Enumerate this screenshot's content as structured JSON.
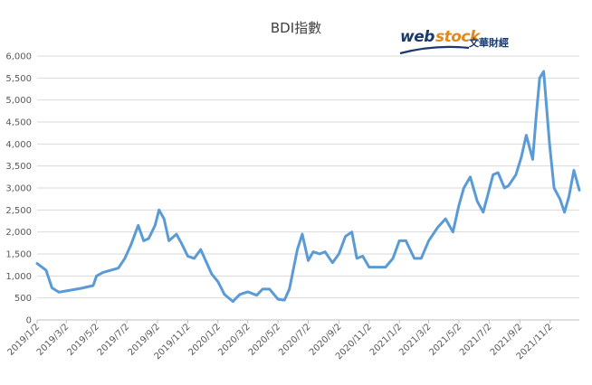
{
  "logo": {
    "brand_part1": "web",
    "brand_part2": "stock",
    "chinese": "文華財經"
  },
  "chart_data": {
    "type": "line",
    "title": "BDI指數",
    "xlabel": "",
    "ylabel": "",
    "ylim": [
      0,
      6000
    ],
    "y_ticks": [
      "0",
      "500",
      "1,000",
      "1,500",
      "2,000",
      "2,500",
      "3,000",
      "3,500",
      "4,000",
      "4,500",
      "5,000",
      "5,500",
      "6,000"
    ],
    "x_ticks": [
      "2019/1/2",
      "2019/3/2",
      "2019/5/2",
      "2019/7/2",
      "2019/9/2",
      "2019/11/2",
      "2020/1/2",
      "2020/3/2",
      "2020/5/2",
      "2020/7/2",
      "2020/9/2",
      "2020/11/2",
      "2021/1/2",
      "2021/3/2",
      "2021/5/2",
      "2021/7/2",
      "2021/9/2",
      "2021/11/2"
    ],
    "grid": true,
    "legend": "none",
    "line_color": "#5b9bd5",
    "series": [
      {
        "name": "",
        "x": [
          "2019/1/2",
          "2019/1/20",
          "2019/2/1",
          "2019/2/15",
          "2019/3/2",
          "2019/4/1",
          "2019/4/25",
          "2019/5/2",
          "2019/5/15",
          "2019/6/15",
          "2019/6/28",
          "2019/7/10",
          "2019/7/25",
          "2019/8/5",
          "2019/8/15",
          "2019/8/28",
          "2019/9/5",
          "2019/9/15",
          "2019/9/25",
          "2019/10/10",
          "2019/10/20",
          "2019/11/2",
          "2019/11/15",
          "2019/11/28",
          "2019/12/10",
          "2019/12/20",
          "2020/1/2",
          "2020/1/15",
          "2020/2/1",
          "2020/2/15",
          "2020/3/2",
          "2020/3/20",
          "2020/4/1",
          "2020/4/15",
          "2020/5/2",
          "2020/5/15",
          "2020/5/25",
          "2020/6/10",
          "2020/6/20",
          "2020/7/2",
          "2020/7/12",
          "2020/7/25",
          "2020/8/5",
          "2020/8/20",
          "2020/9/2",
          "2020/9/15",
          "2020/9/28",
          "2020/10/8",
          "2020/10/20",
          "2020/11/2",
          "2020/11/20",
          "2020/12/5",
          "2020/12/20",
          "2021/1/2",
          "2021/1/15",
          "2021/2/1",
          "2021/2/15",
          "2021/3/2",
          "2021/3/20",
          "2021/4/5",
          "2021/4/20",
          "2021/5/2",
          "2021/5/12",
          "2021/5/25",
          "2021/6/8",
          "2021/6/20",
          "2021/7/2",
          "2021/7/10",
          "2021/7/20",
          "2021/8/2",
          "2021/8/10",
          "2021/8/25",
          "2021/9/5",
          "2021/9/15",
          "2021/9/28",
          "2021/10/5",
          "2021/10/12",
          "2021/10/20",
          "2021/11/1",
          "2021/11/10",
          "2021/11/22",
          "2021/12/1",
          "2021/12/10",
          "2021/12/20",
          "2021/12/31"
        ],
        "values": [
          1282,
          1130,
          730,
          630,
          660,
          720,
          780,
          1000,
          1080,
          1180,
          1400,
          1700,
          2150,
          1800,
          1850,
          2150,
          2500,
          2300,
          1800,
          1950,
          1750,
          1450,
          1400,
          1600,
          1300,
          1050,
          870,
          580,
          420,
          580,
          640,
          560,
          700,
          700,
          470,
          450,
          700,
          1600,
          1950,
          1350,
          1550,
          1500,
          1550,
          1300,
          1500,
          1900,
          2000,
          1400,
          1450,
          1200,
          1200,
          1200,
          1400,
          1800,
          1800,
          1400,
          1400,
          1800,
          2100,
          2300,
          2000,
          2600,
          3000,
          3250,
          2700,
          2450,
          2950,
          3300,
          3350,
          3000,
          3050,
          3300,
          3700,
          4200,
          3650,
          4650,
          5500,
          5650,
          4000,
          3000,
          2750,
          2450,
          2800,
          3400,
          2950
        ]
      }
    ]
  }
}
